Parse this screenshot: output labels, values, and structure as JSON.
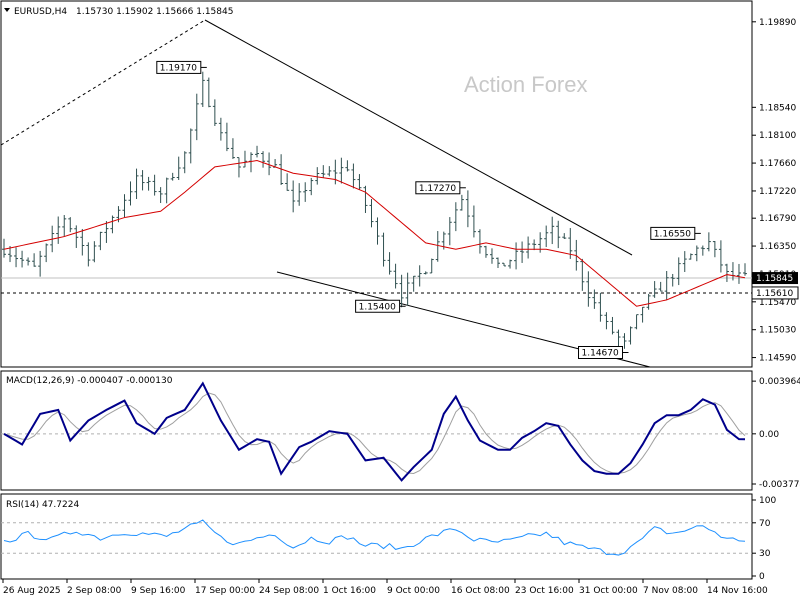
{
  "header": {
    "symbol": "EURUSD,H4",
    "ohlc": "1.15730 1.15902 1.15666 1.15845"
  },
  "watermark": "Action Forex",
  "colors": {
    "bar": "#2f4f4f",
    "ma": "#d40000",
    "macd": "#00008b",
    "signal": "#a0a0a0",
    "rsi": "#1e90ff",
    "price_tag_bg": "#000000"
  },
  "chart_data": [
    {
      "type": "bar",
      "title": "EURUSD,H4",
      "x_ticks": [
        "26 Aug 2025",
        "2 Sep 08:00",
        "9 Sep 16:00",
        "17 Sep 00:00",
        "24 Sep 08:00",
        "1 Oct 16:00",
        "9 Oct 00:00",
        "16 Oct 08:00",
        "23 Oct 16:00",
        "31 Oct 00:00",
        "7 Nov 08:00",
        "14 Nov 16:00"
      ],
      "y_ticks": [
        "1.19890",
        "1.18540",
        "1.18100",
        "1.17660",
        "1.17220",
        "1.16790",
        "1.16350",
        "1.15910",
        "1.15470",
        "1.15030",
        "1.14590"
      ],
      "ylim": [
        1.1452,
        1.1995
      ],
      "current_price": "1.15845",
      "horizontal_level": "1.15610",
      "annotations": [
        {
          "label": "1.19170",
          "index": 33,
          "price": 1.1917
        },
        {
          "label": "1.17270",
          "index": 76,
          "price": 1.1727
        },
        {
          "label": "1.16550",
          "index": 115,
          "price": 1.1655
        },
        {
          "label": "1.15400",
          "index": 66,
          "price": 1.154
        },
        {
          "label": "1.14670",
          "index": 103,
          "price": 1.1467
        }
      ],
      "close_anchors": [
        [
          0,
          1.163
        ],
        [
          5,
          1.16
        ],
        [
          10,
          1.168
        ],
        [
          14,
          1.162
        ],
        [
          18,
          1.168
        ],
        [
          22,
          1.174
        ],
        [
          26,
          1.172
        ],
        [
          30,
          1.178
        ],
        [
          33,
          1.189
        ],
        [
          36,
          1.181
        ],
        [
          39,
          1.176
        ],
        [
          42,
          1.178
        ],
        [
          45,
          1.176
        ],
        [
          48,
          1.17
        ],
        [
          51,
          1.174
        ],
        [
          54,
          1.175
        ],
        [
          57,
          1.176
        ],
        [
          60,
          1.17
        ],
        [
          63,
          1.162
        ],
        [
          66,
          1.156
        ],
        [
          70,
          1.16
        ],
        [
          73,
          1.166
        ],
        [
          76,
          1.171
        ],
        [
          79,
          1.164
        ],
        [
          82,
          1.16
        ],
        [
          85,
          1.162
        ],
        [
          88,
          1.164
        ],
        [
          91,
          1.166
        ],
        [
          94,
          1.163
        ],
        [
          97,
          1.156
        ],
        [
          100,
          1.151
        ],
        [
          103,
          1.148
        ],
        [
          106,
          1.154
        ],
        [
          109,
          1.157
        ],
        [
          112,
          1.16
        ],
        [
          115,
          1.163
        ],
        [
          117,
          1.164
        ],
        [
          120,
          1.159
        ],
        [
          123,
          1.1585
        ]
      ],
      "ma_anchors": [
        [
          0,
          1.163
        ],
        [
          10,
          1.165
        ],
        [
          20,
          1.168
        ],
        [
          26,
          1.169
        ],
        [
          30,
          1.172
        ],
        [
          35,
          1.176
        ],
        [
          42,
          1.177
        ],
        [
          48,
          1.175
        ],
        [
          55,
          1.174
        ],
        [
          60,
          1.172
        ],
        [
          65,
          1.168
        ],
        [
          70,
          1.164
        ],
        [
          75,
          1.163
        ],
        [
          80,
          1.164
        ],
        [
          85,
          1.163
        ],
        [
          90,
          1.163
        ],
        [
          95,
          1.162
        ],
        [
          100,
          1.158
        ],
        [
          105,
          1.154
        ],
        [
          110,
          1.155
        ],
        [
          115,
          1.157
        ],
        [
          120,
          1.159
        ],
        [
          123,
          1.1585
        ]
      ]
    },
    {
      "type": "line",
      "title": "MACD(12,26,9) -0.000407 -0.000130",
      "y_ticks": [
        "0.003964",
        "0.00",
        "-0.003774"
      ],
      "ylim": [
        -0.004,
        0.0042
      ],
      "macd_anchors": [
        [
          0,
          0.0
        ],
        [
          3,
          -0.0008
        ],
        [
          6,
          0.0015
        ],
        [
          9,
          0.0018
        ],
        [
          11,
          -0.0005
        ],
        [
          14,
          0.001
        ],
        [
          17,
          0.0018
        ],
        [
          20,
          0.0025
        ],
        [
          22,
          0.0008
        ],
        [
          25,
          0.0
        ],
        [
          27,
          0.0012
        ],
        [
          30,
          0.0018
        ],
        [
          33,
          0.0038
        ],
        [
          36,
          0.001
        ],
        [
          39,
          -0.0012
        ],
        [
          42,
          -0.0004
        ],
        [
          44,
          -0.0006
        ],
        [
          46,
          -0.003
        ],
        [
          49,
          -0.001
        ],
        [
          51,
          -0.0006
        ],
        [
          54,
          0.0002
        ],
        [
          57,
          0.0
        ],
        [
          60,
          -0.002
        ],
        [
          63,
          -0.0018
        ],
        [
          66,
          -0.0035
        ],
        [
          68,
          -0.0025
        ],
        [
          71,
          -0.0012
        ],
        [
          73,
          0.0015
        ],
        [
          75,
          0.0028
        ],
        [
          77,
          0.001
        ],
        [
          79,
          -0.0005
        ],
        [
          82,
          -0.0012
        ],
        [
          84,
          -0.0012
        ],
        [
          86,
          -0.0003
        ],
        [
          88,
          0.0002
        ],
        [
          90,
          0.0008
        ],
        [
          92,
          0.0006
        ],
        [
          94,
          -0.0008
        ],
        [
          96,
          -0.002
        ],
        [
          98,
          -0.0028
        ],
        [
          100,
          -0.003
        ],
        [
          102,
          -0.003
        ],
        [
          104,
          -0.0022
        ],
        [
          106,
          -0.0008
        ],
        [
          108,
          0.0008
        ],
        [
          110,
          0.0014
        ],
        [
          112,
          0.0014
        ],
        [
          114,
          0.0018
        ],
        [
          116,
          0.0026
        ],
        [
          118,
          0.0022
        ],
        [
          120,
          0.0003
        ],
        [
          122,
          -0.0004
        ],
        [
          123,
          -0.000407
        ]
      ]
    },
    {
      "type": "line",
      "title": "RSI(14) 47.7224",
      "y_ticks": [
        "100",
        "70",
        "30",
        "0"
      ],
      "ylim": [
        0,
        100
      ],
      "rsi_anchors": [
        [
          0,
          45
        ],
        [
          4,
          55
        ],
        [
          8,
          48
        ],
        [
          12,
          60
        ],
        [
          16,
          50
        ],
        [
          20,
          58
        ],
        [
          24,
          55
        ],
        [
          27,
          52
        ],
        [
          30,
          62
        ],
        [
          33,
          70
        ],
        [
          36,
          50
        ],
        [
          39,
          42
        ],
        [
          42,
          50
        ],
        [
          45,
          56
        ],
        [
          48,
          38
        ],
        [
          51,
          50
        ],
        [
          54,
          46
        ],
        [
          57,
          52
        ],
        [
          60,
          40
        ],
        [
          63,
          40
        ],
        [
          66,
          36
        ],
        [
          69,
          46
        ],
        [
          72,
          55
        ],
        [
          75,
          62
        ],
        [
          78,
          48
        ],
        [
          81,
          44
        ],
        [
          84,
          46
        ],
        [
          87,
          52
        ],
        [
          90,
          56
        ],
        [
          93,
          44
        ],
        [
          96,
          38
        ],
        [
          99,
          33
        ],
        [
          102,
          30
        ],
        [
          105,
          42
        ],
        [
          108,
          62
        ],
        [
          111,
          56
        ],
        [
          114,
          62
        ],
        [
          116,
          66
        ],
        [
          118,
          58
        ],
        [
          120,
          48
        ],
        [
          123,
          47.7224
        ]
      ]
    }
  ]
}
